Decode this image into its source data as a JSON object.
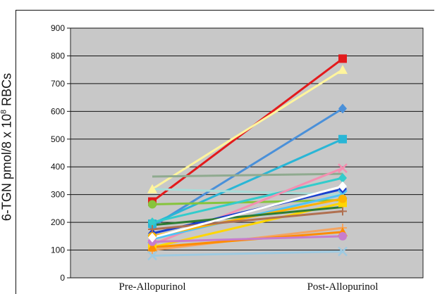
{
  "chart_data": {
    "type": "line",
    "title": "",
    "ylabel_prefix": "6-TGN pmol/8 x 10",
    "ylabel_sup": "8",
    "ylabel_suffix": " RBCs",
    "categories": [
      "Pre-Allopurinol",
      "Post-Allopurinol"
    ],
    "ylim": [
      0,
      900
    ],
    "yticks": [
      0,
      100,
      200,
      300,
      400,
      500,
      600,
      700,
      800,
      900
    ],
    "grid": true,
    "plot_background": "#c8c8c8",
    "series": [
      {
        "values": [
          275,
          790
        ],
        "color": "#e31a1c",
        "marker": "square"
      },
      {
        "values": [
          320,
          750
        ],
        "color": "#fff59d",
        "marker": "triangle"
      },
      {
        "values": [
          185,
          610
        ],
        "color": "#4a90d9",
        "marker": "diamond"
      },
      {
        "values": [
          195,
          500
        ],
        "color": "#29b6d6",
        "marker": "square"
      },
      {
        "values": [
          365,
          375
        ],
        "color": "#8faa8f",
        "marker": "none"
      },
      {
        "values": [
          320,
          300
        ],
        "color": "#a8dcd8",
        "marker": "none"
      },
      {
        "values": [
          265,
          280
        ],
        "color": "#86c43c",
        "marker": "circle"
      },
      {
        "values": [
          200,
          360
        ],
        "color": "#33cccc",
        "marker": "diamond"
      },
      {
        "values": [
          120,
          395
        ],
        "color": "#f48fb1",
        "marker": "x"
      },
      {
        "values": [
          160,
          320
        ],
        "color": "#1a3fcf",
        "marker": "diamond"
      },
      {
        "values": [
          140,
          300
        ],
        "color": "#4fc3f7",
        "marker": "x"
      },
      {
        "values": [
          110,
          270
        ],
        "color": "#ffd600",
        "marker": "square"
      },
      {
        "values": [
          150,
          285
        ],
        "color": "#ffb300",
        "marker": "circle"
      },
      {
        "values": [
          175,
          240
        ],
        "color": "#b07050",
        "marker": "plus"
      },
      {
        "values": [
          100,
          180
        ],
        "color": "#f4a460",
        "marker": "plus"
      },
      {
        "values": [
          110,
          165
        ],
        "color": "#ff8c00",
        "marker": "triangle"
      },
      {
        "values": [
          130,
          150
        ],
        "color": "#c77dce",
        "marker": "circle"
      },
      {
        "values": [
          80,
          95
        ],
        "color": "#9ecae1",
        "marker": "x"
      },
      {
        "values": [
          190,
          255
        ],
        "color": "#2e7d32",
        "marker": "none"
      },
      {
        "values": [
          145,
          330
        ],
        "color": "#ffffff",
        "marker": "diamond"
      }
    ]
  }
}
